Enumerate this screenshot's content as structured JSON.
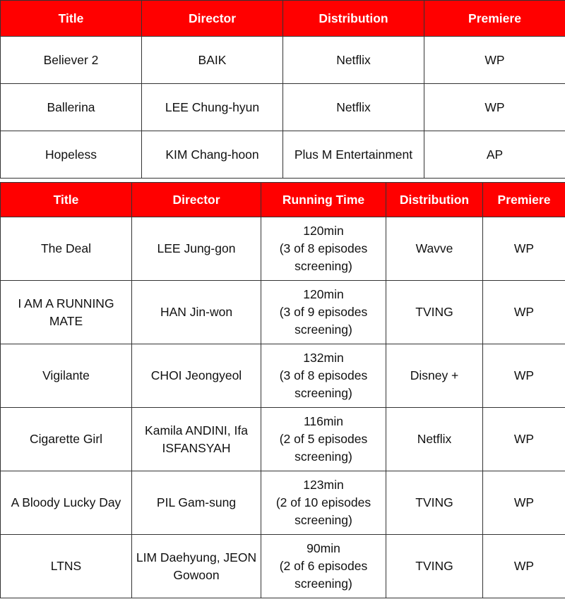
{
  "table1": {
    "headers": [
      "Title",
      "Director",
      "Distribution",
      "Premiere"
    ],
    "rows": [
      [
        "Believer 2",
        "BAIK",
        "Netflix",
        "WP"
      ],
      [
        "Ballerina",
        "LEE Chung-hyun",
        "Netflix",
        "WP"
      ],
      [
        "Hopeless",
        "KIM Chang-hoon",
        "Plus M Entertainment",
        "AP"
      ]
    ]
  },
  "table2": {
    "headers": [
      "Title",
      "Director",
      "Running Time",
      "Distribution",
      "Premiere"
    ],
    "rows": [
      [
        "The Deal",
        "LEE Jung-gon",
        "120min\n(3 of 8 episodes screening)",
        "Wavve",
        "WP"
      ],
      [
        "I AM A RUNNING MATE",
        "HAN Jin-won",
        "120min\n(3 of 9 episodes screening)",
        "TVING",
        "WP"
      ],
      [
        "Vigilante",
        "CHOI Jeongyeol",
        "132min\n(3 of 8 episodes screening)",
        "Disney +",
        "WP"
      ],
      [
        "Cigarette Girl",
        "Kamila ANDINI, Ifa ISFANSYAH",
        "116min\n(2 of 5 episodes screening)",
        "Netflix",
        "WP"
      ],
      [
        "A Bloody Lucky Day",
        "PIL Gam-sung",
        "123min\n(2 of 10 episodes screening)",
        "TVING",
        "WP"
      ],
      [
        "LTNS",
        "LIM Daehyung, JEON Gowoon",
        "90min\n(2 of 6 episodes screening)",
        "TVING",
        "WP"
      ]
    ]
  },
  "colors": {
    "header_bg": "#ff0000",
    "header_text": "#ffffff",
    "border": "#333333"
  }
}
